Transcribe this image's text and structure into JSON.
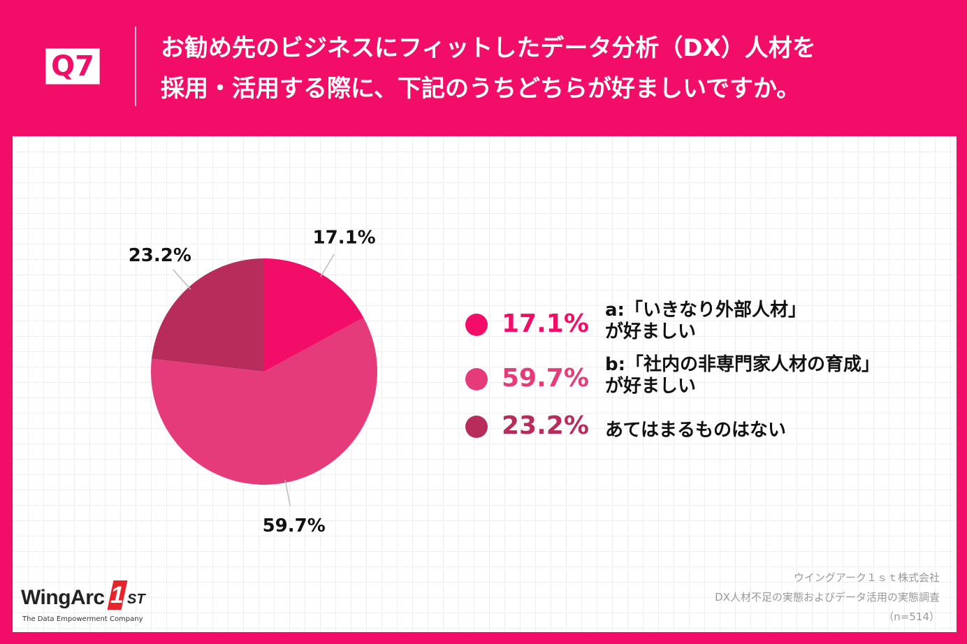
{
  "header": {
    "badge": "Q7",
    "question_line1": "お勧め先のビジネスにフィットしたデータ分析（DX）人材を",
    "question_line2": "採用・活用する際に、下記のうちどちらが好ましいですか。"
  },
  "chart_data": {
    "type": "pie",
    "title": "",
    "slices": [
      {
        "label": "a:「いきなり外部人材」が好ましい",
        "value": 17.1,
        "display": "17.1%",
        "color": "#f20d68"
      },
      {
        "label": "b:「社内の非専門家人材の育成」が好ましい",
        "value": 59.7,
        "display": "59.7%",
        "color": "#e63b7a"
      },
      {
        "label": "あてはまるものはない",
        "value": 23.2,
        "display": "23.2%",
        "color": "#b82c5c"
      }
    ]
  },
  "legend": [
    {
      "pct": "17.1%",
      "line1": "a:「いきなり外部人材」",
      "line2": "が好ましい",
      "color": "#f20d68"
    },
    {
      "pct": "59.7%",
      "line1": "b:「社内の非専門家人材の育成」",
      "line2": "が好ましい",
      "color": "#e63b7a"
    },
    {
      "pct": "23.2%",
      "line1": "あてはまるものはない",
      "line2": "",
      "color": "#b82c5c"
    }
  ],
  "logo": {
    "name": "WingArc",
    "one": "1",
    "st": "ST",
    "tagline": "The Data Empowerment Company"
  },
  "source": {
    "company": "ウイングアーク１ｓｔ株式会社",
    "survey": "DX人材不足の実態およびデータ活用の実態調査",
    "n": "（n=514）"
  }
}
